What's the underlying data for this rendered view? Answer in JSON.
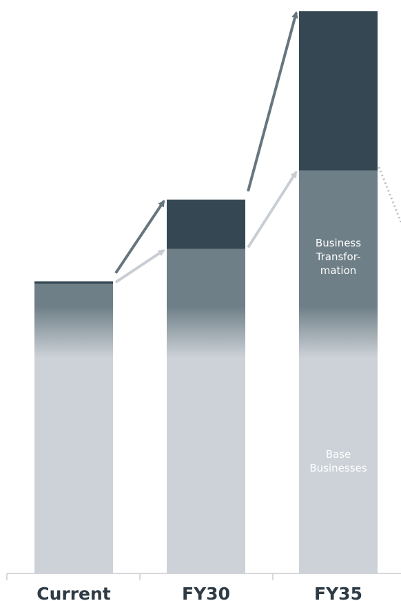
{
  "chart_data": {
    "type": "bar",
    "stacked": true,
    "categories": [
      "Current",
      "FY30",
      "FY35"
    ],
    "series": [
      {
        "values": [
          100,
          112,
          139
        ]
      },
      {
        "values": [
          0.8,
          17,
          55
        ]
      }
    ],
    "ylim": [
      0,
      195
    ],
    "grid": false,
    "labels": {
      "base": "Base Businesses",
      "transformation": "Business Transfor-mation"
    },
    "colors": {
      "base_top": "#6f7f87",
      "base_bottom": "#cdd2d8",
      "transformation": "#344753",
      "arrow_dark": "#66757e",
      "arrow_light": "#c9ced4",
      "axis": "#c8ccd0",
      "dotted": "#b8bec4"
    }
  }
}
